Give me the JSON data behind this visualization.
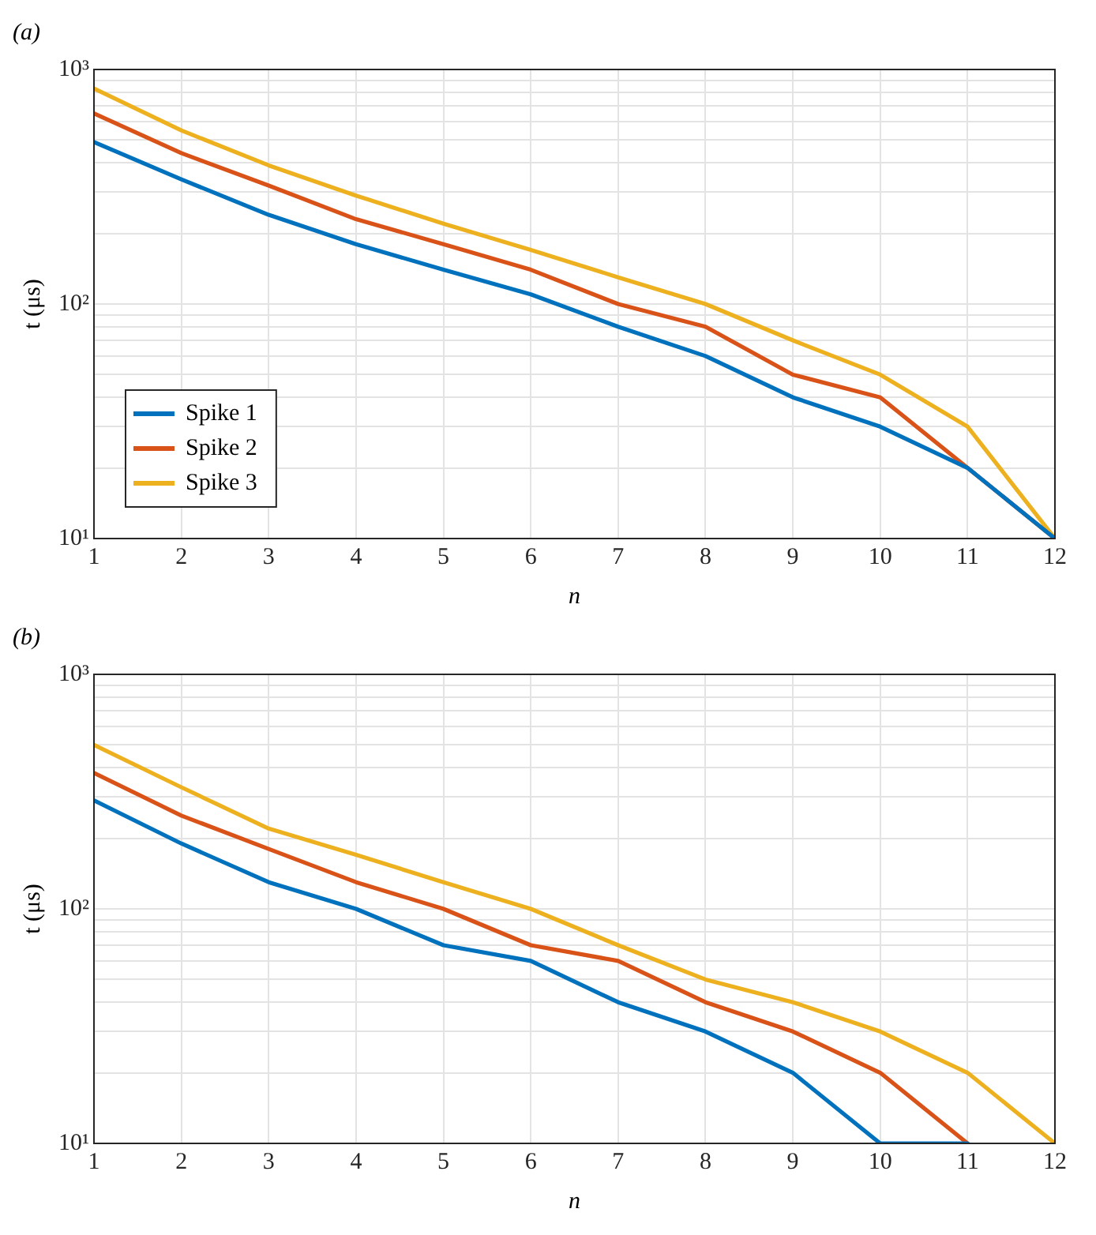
{
  "chart_data": [
    {
      "type": "line",
      "title": "(a)",
      "xlabel": "n",
      "ylabel": "t (μs)",
      "log": "y",
      "grid": true,
      "legend": "bottom left",
      "x": [
        1,
        2,
        3,
        4,
        5,
        6,
        7,
        8,
        9,
        10,
        11,
        12
      ],
      "xlim": [
        1,
        12
      ],
      "xticks": [
        1,
        2,
        3,
        4,
        5,
        6,
        7,
        8,
        9,
        10,
        11,
        12
      ],
      "ylim": [
        10,
        1000
      ],
      "yticks": [
        {
          "value": 10,
          "label": "10¹"
        },
        {
          "value": 20,
          "label": null
        },
        {
          "value": 30,
          "label": null
        },
        {
          "value": 40,
          "label": null
        },
        {
          "value": 50,
          "label": null
        },
        {
          "value": 60,
          "label": null
        },
        {
          "value": 70,
          "label": null
        },
        {
          "value": 80,
          "label": null
        },
        {
          "value": 90,
          "label": null
        },
        {
          "value": 100,
          "label": "10²"
        },
        {
          "value": 200,
          "label": null
        },
        {
          "value": 300,
          "label": null
        },
        {
          "value": 400,
          "label": null
        },
        {
          "value": 500,
          "label": null
        },
        {
          "value": 600,
          "label": null
        },
        {
          "value": 700,
          "label": null
        },
        {
          "value": 800,
          "label": null
        },
        {
          "value": 900,
          "label": null
        },
        {
          "value": 1000,
          "label": "10³"
        }
      ],
      "series": [
        {
          "name": "Spike 1",
          "color": "#0072bd",
          "values": [
            490,
            340,
            240,
            180,
            140,
            110,
            80,
            60,
            40,
            30,
            20,
            10
          ]
        },
        {
          "name": "Spike 2",
          "color": "#d95319",
          "values": [
            650,
            440,
            320,
            230,
            180,
            140,
            100,
            80,
            50,
            40,
            20,
            10
          ]
        },
        {
          "name": "Spike 3",
          "color": "#edb120",
          "values": [
            830,
            550,
            390,
            290,
            220,
            170,
            130,
            100,
            70,
            50,
            30,
            10
          ]
        }
      ]
    },
    {
      "type": "line",
      "title": "(b)",
      "xlabel": "n",
      "ylabel": "t (μs)",
      "log": "y",
      "grid": true,
      "x": [
        1,
        2,
        3,
        4,
        5,
        6,
        7,
        8,
        9,
        10,
        11,
        12
      ],
      "xlim": [
        1,
        12
      ],
      "xticks": [
        1,
        2,
        3,
        4,
        5,
        6,
        7,
        8,
        9,
        10,
        11,
        12
      ],
      "ylim": [
        10,
        1000
      ],
      "yticks": [
        {
          "value": 10,
          "label": "10¹"
        },
        {
          "value": 20,
          "label": null
        },
        {
          "value": 30,
          "label": null
        },
        {
          "value": 40,
          "label": null
        },
        {
          "value": 50,
          "label": null
        },
        {
          "value": 60,
          "label": null
        },
        {
          "value": 70,
          "label": null
        },
        {
          "value": 80,
          "label": null
        },
        {
          "value": 90,
          "label": null
        },
        {
          "value": 100,
          "label": "10²"
        },
        {
          "value": 200,
          "label": null
        },
        {
          "value": 300,
          "label": null
        },
        {
          "value": 400,
          "label": null
        },
        {
          "value": 500,
          "label": null
        },
        {
          "value": 600,
          "label": null
        },
        {
          "value": 700,
          "label": null
        },
        {
          "value": 800,
          "label": null
        },
        {
          "value": 900,
          "label": null
        },
        {
          "value": 1000,
          "label": "10³"
        }
      ],
      "series": [
        {
          "color": "#0072bd",
          "values": [
            290,
            190,
            130,
            100,
            70,
            60,
            40,
            30,
            20,
            10,
            10,
            null
          ]
        },
        {
          "color": "#d95319",
          "values": [
            380,
            250,
            180,
            130,
            100,
            70,
            60,
            40,
            30,
            20,
            10,
            null
          ]
        },
        {
          "color": "#edb120",
          "values": [
            500,
            330,
            220,
            170,
            130,
            100,
            70,
            50,
            40,
            30,
            20,
            10
          ]
        }
      ]
    }
  ]
}
